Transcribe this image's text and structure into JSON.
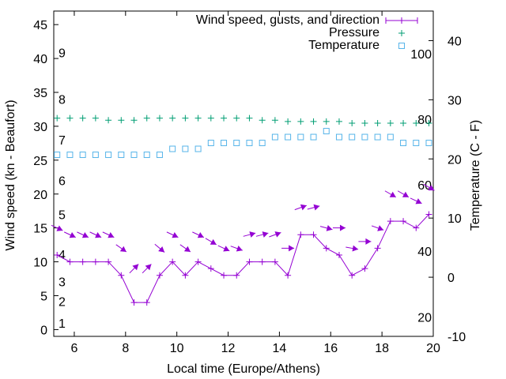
{
  "chart_data": {
    "type": "line",
    "xlabel": "Local time (Europe/Athens)",
    "ylabel": "Wind speed (kn - Beaufort)",
    "y2label": "Temperature (C - F)",
    "xlim": [
      5.2,
      20
    ],
    "ylim": [
      -1,
      47
    ],
    "y2lim": [
      -10,
      45
    ],
    "x_ticks": [
      6,
      8,
      10,
      12,
      14,
      16,
      18,
      20
    ],
    "y_ticks": [
      0,
      5,
      10,
      15,
      20,
      25,
      30,
      35,
      40,
      45
    ],
    "y2_ticks": [
      -10,
      0,
      10,
      20,
      30,
      40
    ],
    "beaufort_labels": [
      {
        "label": "1",
        "kn": 1
      },
      {
        "label": "2",
        "kn": 4.2
      },
      {
        "label": "3",
        "kn": 7.1
      },
      {
        "label": "4",
        "kn": 11.1
      },
      {
        "label": "5",
        "kn": 17
      },
      {
        "label": "6",
        "kn": 22
      },
      {
        "label": "7",
        "kn": 28
      },
      {
        "label": "8",
        "kn": 34
      },
      {
        "label": "9",
        "kn": 40.9
      }
    ],
    "fahrenheit_labels": [
      {
        "label": "20",
        "c": -6.7
      },
      {
        "label": "40",
        "c": 4.4
      },
      {
        "label": "60",
        "c": 15.6
      },
      {
        "label": "80",
        "c": 26.7
      },
      {
        "label": "100",
        "c": 37.8
      }
    ],
    "legend": {
      "position": "top-right",
      "entries": [
        "Wind speed, gusts, and direction",
        "Pressure",
        "Temperature"
      ]
    },
    "x": [
      5.33,
      5.83,
      6.33,
      6.83,
      7.33,
      7.83,
      8.33,
      8.83,
      9.33,
      9.83,
      10.33,
      10.83,
      11.33,
      11.83,
      12.33,
      12.83,
      13.33,
      13.83,
      14.33,
      14.83,
      15.33,
      15.83,
      16.33,
      16.83,
      17.33,
      17.83,
      18.33,
      18.83,
      19.33,
      19.83
    ],
    "series": [
      {
        "name": "Wind speed",
        "color": "#9400d3",
        "values": [
          11,
          10,
          10,
          10,
          10,
          8,
          4,
          4,
          8,
          10,
          8,
          10,
          9,
          8,
          8,
          10,
          10,
          10,
          8,
          14,
          14,
          12,
          11,
          8,
          9,
          12,
          16,
          16,
          15,
          17
        ]
      },
      {
        "name": "Gusts",
        "color": "#9400d3",
        "values": [
          15,
          14,
          14,
          14,
          14,
          12,
          9,
          9,
          12,
          14,
          12,
          14,
          13,
          12,
          12,
          14,
          14,
          14,
          12,
          18,
          18,
          15,
          15,
          12,
          13,
          15,
          20,
          20,
          19,
          21
        ]
      },
      {
        "name": "Direction (arrow angle deg, screen)",
        "color": "#9400d3",
        "values": [
          25,
          25,
          25,
          25,
          25,
          35,
          -45,
          -45,
          40,
          25,
          35,
          25,
          30,
          25,
          20,
          -15,
          -15,
          -20,
          0,
          -20,
          -15,
          15,
          0,
          10,
          0,
          20,
          30,
          30,
          25,
          30
        ]
      },
      {
        "name": "Pressure",
        "color": "#009e73",
        "values": [
          31.2,
          31.2,
          31.2,
          31.2,
          30.9,
          30.9,
          30.9,
          31.2,
          31.2,
          31.2,
          31.2,
          31.2,
          31.2,
          31.2,
          31.2,
          31.2,
          30.9,
          30.9,
          30.7,
          30.7,
          30.7,
          30.7,
          30.7,
          30.45,
          30.45,
          30.45,
          30.45,
          30.45,
          30.45,
          30.45
        ]
      },
      {
        "name": "Temperature",
        "color": "#56b4e9",
        "axis": "y2",
        "values": [
          20.7,
          20.7,
          20.7,
          20.7,
          20.7,
          20.7,
          20.7,
          20.7,
          20.7,
          21.7,
          21.7,
          21.7,
          22.7,
          22.7,
          22.7,
          22.7,
          22.7,
          23.7,
          23.7,
          23.7,
          23.7,
          24.7,
          23.7,
          23.7,
          23.7,
          23.7,
          23.7,
          22.7,
          22.7,
          22.7
        ]
      }
    ]
  }
}
